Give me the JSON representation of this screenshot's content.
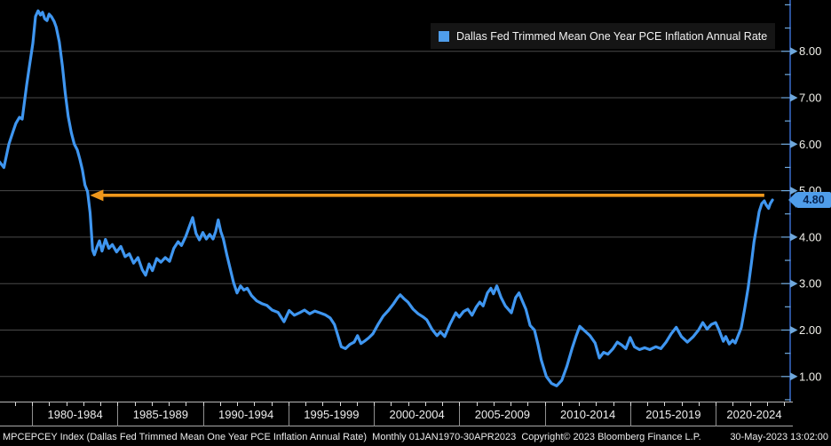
{
  "window": {
    "title": "Bloomberg chart - MPCEPCEY Index",
    "background": "#000000"
  },
  "colors": {
    "line": "#3f96f0",
    "legend_swatch": "#4f9dea",
    "arrow": "#ef971b",
    "grid": "#4a4a4a",
    "axis": "#3565c0",
    "tick": "#6fa8dc",
    "axis_label": "#f0efe9",
    "badge_bg": "#4f9dea",
    "badge_text": "#06224e"
  },
  "legend": {
    "label": "Dallas Fed Trimmed Mean One Year PCE Inflation Annual Rate"
  },
  "last_value_badge": {
    "text": "4.80"
  },
  "status_bar": {
    "left": "MPCEPCEY Index (Dallas Fed Trimmed Mean One Year PCE Inflation Annual Rate)  Monthly 01JAN1970-30APR2023  Copyright© 2023 Bloomberg Finance L.P.",
    "timestamp": "30-May-2023 13:02:00"
  },
  "chart_data": {
    "type": "line",
    "title": "Dallas Fed Trimmed Mean One Year PCE Inflation Annual Rate",
    "xlabel": "",
    "ylabel": "",
    "grid": true,
    "legend_position": "top-right",
    "xlim": [
      1978.1,
      2024.4
    ],
    "ylim": [
      0.45,
      9.1
    ],
    "x_sections": [
      "1980-1984",
      "1985-1989",
      "1990-1994",
      "1995-1999",
      "2000-2004",
      "2005-2009",
      "2010-2014",
      "2015-2019",
      "2020-2024"
    ],
    "y_tick_labels": [
      "8.00",
      "7.00",
      "6.00",
      "5.00",
      "4.00",
      "3.00",
      "2.00",
      "1.00"
    ],
    "y_tick_values": [
      8,
      7,
      6,
      5,
      4,
      3,
      2,
      1
    ],
    "last_value": 4.8,
    "annotation": {
      "type": "horizontal-arrow-left",
      "value": 4.9,
      "from_year": 1983.4,
      "to_year": 2022.85
    },
    "series": [
      {
        "name": "Dallas Fed Trimmed Mean One Year PCE Inflation Annual Rate",
        "points": [
          [
            1978.1,
            5.62
          ],
          [
            1978.36,
            5.5
          ],
          [
            1978.65,
            6.0
          ],
          [
            1978.9,
            6.28
          ],
          [
            1979.06,
            6.45
          ],
          [
            1979.27,
            6.58
          ],
          [
            1979.43,
            6.54
          ],
          [
            1979.69,
            7.27
          ],
          [
            1979.84,
            7.65
          ],
          [
            1980.05,
            8.17
          ],
          [
            1980.21,
            8.75
          ],
          [
            1980.36,
            8.87
          ],
          [
            1980.5,
            8.78
          ],
          [
            1980.62,
            8.84
          ],
          [
            1980.75,
            8.7
          ],
          [
            1980.88,
            8.66
          ],
          [
            1981.0,
            8.8
          ],
          [
            1981.15,
            8.74
          ],
          [
            1981.3,
            8.64
          ],
          [
            1981.42,
            8.52
          ],
          [
            1981.6,
            8.2
          ],
          [
            1981.78,
            7.68
          ],
          [
            1981.95,
            7.1
          ],
          [
            1982.12,
            6.6
          ],
          [
            1982.3,
            6.25
          ],
          [
            1982.48,
            6.0
          ],
          [
            1982.65,
            5.88
          ],
          [
            1982.8,
            5.68
          ],
          [
            1982.95,
            5.45
          ],
          [
            1983.1,
            5.12
          ],
          [
            1983.25,
            4.98
          ],
          [
            1983.4,
            4.52
          ],
          [
            1983.55,
            3.72
          ],
          [
            1983.65,
            3.62
          ],
          [
            1983.8,
            3.78
          ],
          [
            1983.95,
            3.92
          ],
          [
            1984.1,
            3.7
          ],
          [
            1984.3,
            3.95
          ],
          [
            1984.5,
            3.76
          ],
          [
            1984.7,
            3.84
          ],
          [
            1984.95,
            3.68
          ],
          [
            1985.2,
            3.8
          ],
          [
            1985.45,
            3.58
          ],
          [
            1985.7,
            3.64
          ],
          [
            1985.95,
            3.44
          ],
          [
            1986.2,
            3.56
          ],
          [
            1986.45,
            3.3
          ],
          [
            1986.65,
            3.18
          ],
          [
            1986.85,
            3.42
          ],
          [
            1987.05,
            3.28
          ],
          [
            1987.3,
            3.54
          ],
          [
            1987.55,
            3.46
          ],
          [
            1987.8,
            3.56
          ],
          [
            1988.05,
            3.48
          ],
          [
            1988.3,
            3.76
          ],
          [
            1988.55,
            3.9
          ],
          [
            1988.75,
            3.82
          ],
          [
            1989.0,
            4.02
          ],
          [
            1989.2,
            4.22
          ],
          [
            1989.4,
            4.42
          ],
          [
            1989.6,
            4.08
          ],
          [
            1989.8,
            3.94
          ],
          [
            1990.0,
            4.1
          ],
          [
            1990.2,
            3.96
          ],
          [
            1990.4,
            4.06
          ],
          [
            1990.6,
            3.96
          ],
          [
            1990.75,
            4.12
          ],
          [
            1990.9,
            4.37
          ],
          [
            1991.05,
            4.12
          ],
          [
            1991.2,
            3.96
          ],
          [
            1991.4,
            3.62
          ],
          [
            1991.6,
            3.32
          ],
          [
            1991.8,
            3.02
          ],
          [
            1992.0,
            2.8
          ],
          [
            1992.2,
            2.95
          ],
          [
            1992.4,
            2.86
          ],
          [
            1992.6,
            2.9
          ],
          [
            1992.85,
            2.74
          ],
          [
            1993.15,
            2.63
          ],
          [
            1993.45,
            2.57
          ],
          [
            1993.75,
            2.53
          ],
          [
            1994.05,
            2.43
          ],
          [
            1994.4,
            2.38
          ],
          [
            1994.75,
            2.18
          ],
          [
            1995.05,
            2.42
          ],
          [
            1995.35,
            2.32
          ],
          [
            1995.65,
            2.37
          ],
          [
            1995.95,
            2.43
          ],
          [
            1996.25,
            2.35
          ],
          [
            1996.55,
            2.41
          ],
          [
            1996.85,
            2.37
          ],
          [
            1997.15,
            2.33
          ],
          [
            1997.45,
            2.26
          ],
          [
            1997.7,
            2.12
          ],
          [
            1997.9,
            1.88
          ],
          [
            1998.1,
            1.64
          ],
          [
            1998.35,
            1.6
          ],
          [
            1998.6,
            1.69
          ],
          [
            1998.85,
            1.74
          ],
          [
            1999.05,
            1.88
          ],
          [
            1999.25,
            1.71
          ],
          [
            1999.45,
            1.76
          ],
          [
            1999.7,
            1.83
          ],
          [
            1999.95,
            1.92
          ],
          [
            2000.25,
            2.12
          ],
          [
            2000.55,
            2.3
          ],
          [
            2000.85,
            2.42
          ],
          [
            2001.15,
            2.56
          ],
          [
            2001.4,
            2.7
          ],
          [
            2001.55,
            2.76
          ],
          [
            2001.75,
            2.68
          ],
          [
            2002.0,
            2.6
          ],
          [
            2002.3,
            2.45
          ],
          [
            2002.6,
            2.35
          ],
          [
            2002.9,
            2.28
          ],
          [
            2003.1,
            2.22
          ],
          [
            2003.4,
            2.02
          ],
          [
            2003.7,
            1.88
          ],
          [
            2003.9,
            1.96
          ],
          [
            2004.15,
            1.86
          ],
          [
            2004.45,
            2.12
          ],
          [
            2004.8,
            2.37
          ],
          [
            2005.0,
            2.28
          ],
          [
            2005.25,
            2.4
          ],
          [
            2005.5,
            2.45
          ],
          [
            2005.75,
            2.32
          ],
          [
            2006.0,
            2.5
          ],
          [
            2006.2,
            2.6
          ],
          [
            2006.4,
            2.52
          ],
          [
            2006.65,
            2.8
          ],
          [
            2006.85,
            2.9
          ],
          [
            2007.0,
            2.78
          ],
          [
            2007.2,
            2.95
          ],
          [
            2007.45,
            2.7
          ],
          [
            2007.7,
            2.52
          ],
          [
            2008.05,
            2.37
          ],
          [
            2008.3,
            2.7
          ],
          [
            2008.5,
            2.8
          ],
          [
            2008.7,
            2.62
          ],
          [
            2008.9,
            2.45
          ],
          [
            2009.15,
            2.1
          ],
          [
            2009.4,
            2.0
          ],
          [
            2009.6,
            1.7
          ],
          [
            2009.8,
            1.36
          ],
          [
            2010.1,
            1.0
          ],
          [
            2010.4,
            0.85
          ],
          [
            2010.7,
            0.8
          ],
          [
            2011.0,
            0.92
          ],
          [
            2011.3,
            1.22
          ],
          [
            2011.6,
            1.6
          ],
          [
            2011.85,
            1.88
          ],
          [
            2012.05,
            2.08
          ],
          [
            2012.35,
            1.98
          ],
          [
            2012.65,
            1.88
          ],
          [
            2012.95,
            1.72
          ],
          [
            2013.2,
            1.4
          ],
          [
            2013.45,
            1.52
          ],
          [
            2013.7,
            1.48
          ],
          [
            2014.0,
            1.6
          ],
          [
            2014.25,
            1.74
          ],
          [
            2014.5,
            1.68
          ],
          [
            2014.75,
            1.6
          ],
          [
            2015.0,
            1.84
          ],
          [
            2015.25,
            1.64
          ],
          [
            2015.55,
            1.58
          ],
          [
            2015.85,
            1.62
          ],
          [
            2016.15,
            1.58
          ],
          [
            2016.5,
            1.64
          ],
          [
            2016.8,
            1.6
          ],
          [
            2017.1,
            1.74
          ],
          [
            2017.4,
            1.92
          ],
          [
            2017.7,
            2.06
          ],
          [
            2018.0,
            1.86
          ],
          [
            2018.35,
            1.74
          ],
          [
            2018.7,
            1.86
          ],
          [
            2019.0,
            2.0
          ],
          [
            2019.25,
            2.16
          ],
          [
            2019.5,
            2.02
          ],
          [
            2019.75,
            2.12
          ],
          [
            2020.0,
            2.16
          ],
          [
            2020.2,
            2.0
          ],
          [
            2020.45,
            1.76
          ],
          [
            2020.6,
            1.86
          ],
          [
            2020.8,
            1.7
          ],
          [
            2021.0,
            1.78
          ],
          [
            2021.15,
            1.72
          ],
          [
            2021.3,
            1.86
          ],
          [
            2021.5,
            2.05
          ],
          [
            2021.7,
            2.45
          ],
          [
            2021.9,
            2.9
          ],
          [
            2022.1,
            3.45
          ],
          [
            2022.25,
            3.9
          ],
          [
            2022.4,
            4.22
          ],
          [
            2022.55,
            4.55
          ],
          [
            2022.7,
            4.72
          ],
          [
            2022.85,
            4.78
          ],
          [
            2022.95,
            4.7
          ],
          [
            2023.1,
            4.62
          ],
          [
            2023.2,
            4.72
          ],
          [
            2023.33,
            4.8
          ]
        ]
      }
    ]
  }
}
